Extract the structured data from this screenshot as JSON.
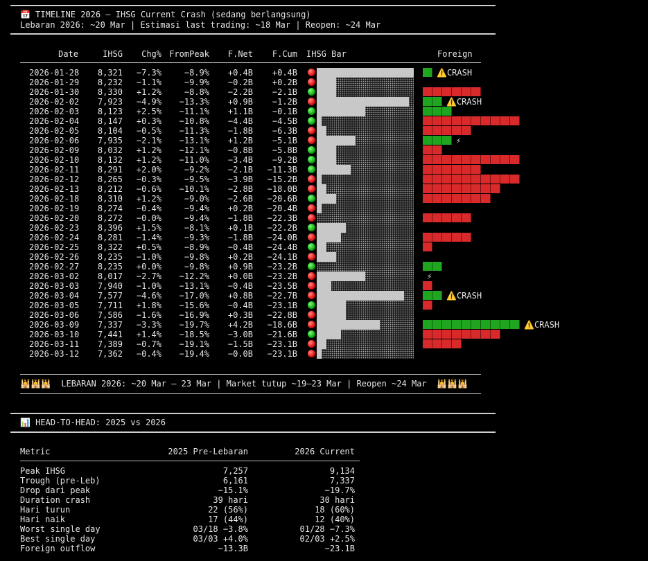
{
  "header": {
    "icon": "calendar-icon",
    "title": "📅 TIMELINE 2026 — IHSG Current Crash (sedang berlangsung)",
    "subtitle": "Lebaran 2026: ~20 Mar | Estimasi last trading: ~18 Mar | Reopen: ~24 Mar"
  },
  "table": {
    "columns": [
      "Date",
      "IHSG",
      "Chg%",
      "FromPeak",
      "F.Net",
      "F.Cum",
      "IHSG Bar",
      "Foreign"
    ],
    "rows": [
      {
        "date": "2026-01-28",
        "ihsg": "8,321",
        "chg": "−7.3%",
        "frompeak": "−8.9%",
        "fnet": "+0.4B",
        "fcum": "+0.4B",
        "dir": "dn",
        "bar": 1.0,
        "fdir": "pos",
        "fblocks": 1,
        "flag": "⚠️CRASH"
      },
      {
        "date": "2026-01-29",
        "ihsg": "8,232",
        "chg": "−1.1%",
        "frompeak": "−9.9%",
        "fnet": "−0.2B",
        "fcum": "+0.2B",
        "dir": "dn",
        "bar": 0.2,
        "fdir": "neg",
        "fblocks": 0,
        "flag": ""
      },
      {
        "date": "2026-01-30",
        "ihsg": "8,330",
        "chg": "+1.2%",
        "frompeak": "−8.8%",
        "fnet": "−2.2B",
        "fcum": "−2.1B",
        "dir": "up",
        "bar": 0.2,
        "fdir": "neg",
        "fblocks": 6,
        "flag": ""
      },
      {
        "date": "2026-02-02",
        "ihsg": "7,923",
        "chg": "−4.9%",
        "frompeak": "−13.3%",
        "fnet": "+0.9B",
        "fcum": "−1.2B",
        "dir": "dn",
        "bar": 0.95,
        "fdir": "pos",
        "fblocks": 2,
        "flag": "⚠️CRASH"
      },
      {
        "date": "2026-02-03",
        "ihsg": "8,123",
        "chg": "+2.5%",
        "frompeak": "−11.1%",
        "fnet": "+1.1B",
        "fcum": "−0.1B",
        "dir": "up",
        "bar": 0.5,
        "fdir": "pos",
        "fblocks": 3,
        "flag": ""
      },
      {
        "date": "2026-02-04",
        "ihsg": "8,147",
        "chg": "+0.3%",
        "frompeak": "−10.8%",
        "fnet": "−4.4B",
        "fcum": "−4.5B",
        "dir": "up",
        "bar": 0.05,
        "fdir": "neg",
        "fblocks": 10,
        "flag": ""
      },
      {
        "date": "2026-02-05",
        "ihsg": "8,104",
        "chg": "−0.5%",
        "frompeak": "−11.3%",
        "fnet": "−1.8B",
        "fcum": "−6.3B",
        "dir": "dn",
        "bar": 0.1,
        "fdir": "neg",
        "fblocks": 5,
        "flag": ""
      },
      {
        "date": "2026-02-06",
        "ihsg": "7,935",
        "chg": "−2.1%",
        "frompeak": "−13.1%",
        "fnet": "+1.2B",
        "fcum": "−5.1B",
        "dir": "dn",
        "bar": 0.4,
        "fdir": "pos",
        "fblocks": 3,
        "flag": "⚡"
      },
      {
        "date": "2026-02-09",
        "ihsg": "8,032",
        "chg": "+1.2%",
        "frompeak": "−12.1%",
        "fnet": "−0.8B",
        "fcum": "−5.8B",
        "dir": "up",
        "bar": 0.2,
        "fdir": "neg",
        "fblocks": 2,
        "flag": ""
      },
      {
        "date": "2026-02-10",
        "ihsg": "8,132",
        "chg": "+1.2%",
        "frompeak": "−11.0%",
        "fnet": "−3.4B",
        "fcum": "−9.2B",
        "dir": "up",
        "bar": 0.2,
        "fdir": "neg",
        "fblocks": 10,
        "flag": ""
      },
      {
        "date": "2026-02-11",
        "ihsg": "8,291",
        "chg": "+2.0%",
        "frompeak": "−9.2%",
        "fnet": "−2.1B",
        "fcum": "−11.3B",
        "dir": "up",
        "bar": 0.35,
        "fdir": "neg",
        "fblocks": 6,
        "flag": ""
      },
      {
        "date": "2026-02-12",
        "ihsg": "8,265",
        "chg": "−0.3%",
        "frompeak": "−9.5%",
        "fnet": "−3.9B",
        "fcum": "−15.2B",
        "dir": "dn",
        "bar": 0.05,
        "fdir": "neg",
        "fblocks": 10,
        "flag": ""
      },
      {
        "date": "2026-02-13",
        "ihsg": "8,212",
        "chg": "−0.6%",
        "frompeak": "−10.1%",
        "fnet": "−2.8B",
        "fcum": "−18.0B",
        "dir": "dn",
        "bar": 0.1,
        "fdir": "neg",
        "fblocks": 8,
        "flag": ""
      },
      {
        "date": "2026-02-18",
        "ihsg": "8,310",
        "chg": "+1.2%",
        "frompeak": "−9.0%",
        "fnet": "−2.6B",
        "fcum": "−20.6B",
        "dir": "up",
        "bar": 0.2,
        "fdir": "neg",
        "fblocks": 7,
        "flag": ""
      },
      {
        "date": "2026-02-19",
        "ihsg": "8,274",
        "chg": "−0.4%",
        "frompeak": "−9.4%",
        "fnet": "+0.2B",
        "fcum": "−20.4B",
        "dir": "dn",
        "bar": 0.05,
        "fdir": "pos",
        "fblocks": 0,
        "flag": ""
      },
      {
        "date": "2026-02-20",
        "ihsg": "8,272",
        "chg": "−0.0%",
        "frompeak": "−9.4%",
        "fnet": "−1.8B",
        "fcum": "−22.3B",
        "dir": "dn",
        "bar": 0.0,
        "fdir": "neg",
        "fblocks": 5,
        "flag": ""
      },
      {
        "date": "2026-02-23",
        "ihsg": "8,396",
        "chg": "+1.5%",
        "frompeak": "−8.1%",
        "fnet": "+0.1B",
        "fcum": "−22.2B",
        "dir": "up",
        "bar": 0.3,
        "fdir": "pos",
        "fblocks": 0,
        "flag": ""
      },
      {
        "date": "2026-02-24",
        "ihsg": "8,281",
        "chg": "−1.4%",
        "frompeak": "−9.3%",
        "fnet": "−1.8B",
        "fcum": "−24.0B",
        "dir": "dn",
        "bar": 0.25,
        "fdir": "neg",
        "fblocks": 5,
        "flag": ""
      },
      {
        "date": "2026-02-25",
        "ihsg": "8,322",
        "chg": "+0.5%",
        "frompeak": "−8.9%",
        "fnet": "−0.4B",
        "fcum": "−24.4B",
        "dir": "up",
        "bar": 0.1,
        "fdir": "neg",
        "fblocks": 1,
        "flag": ""
      },
      {
        "date": "2026-02-26",
        "ihsg": "8,235",
        "chg": "−1.0%",
        "frompeak": "−9.8%",
        "fnet": "+0.2B",
        "fcum": "−24.1B",
        "dir": "dn",
        "bar": 0.2,
        "fdir": "pos",
        "fblocks": 0,
        "flag": ""
      },
      {
        "date": "2026-02-27",
        "ihsg": "8,235",
        "chg": "+0.0%",
        "frompeak": "−9.8%",
        "fnet": "+0.9B",
        "fcum": "−23.2B",
        "dir": "up",
        "bar": 0.0,
        "fdir": "pos",
        "fblocks": 2,
        "flag": ""
      },
      {
        "date": "2026-03-02",
        "ihsg": "8,017",
        "chg": "−2.7%",
        "frompeak": "−12.2%",
        "fnet": "+0.0B",
        "fcum": "−23.2B",
        "dir": "dn",
        "bar": 0.5,
        "fdir": "pos",
        "fblocks": 0,
        "flag": "⚡"
      },
      {
        "date": "2026-03-03",
        "ihsg": "7,940",
        "chg": "−1.0%",
        "frompeak": "−13.1%",
        "fnet": "−0.4B",
        "fcum": "−23.5B",
        "dir": "dn",
        "bar": 0.15,
        "fdir": "neg",
        "fblocks": 1,
        "flag": ""
      },
      {
        "date": "2026-03-04",
        "ihsg": "7,577",
        "chg": "−4.6%",
        "frompeak": "−17.0%",
        "fnet": "+0.8B",
        "fcum": "−22.7B",
        "dir": "dn",
        "bar": 0.9,
        "fdir": "pos",
        "fblocks": 2,
        "flag": "⚠️CRASH"
      },
      {
        "date": "2026-03-05",
        "ihsg": "7,711",
        "chg": "+1.8%",
        "frompeak": "−15.6%",
        "fnet": "−0.4B",
        "fcum": "−23.1B",
        "dir": "up",
        "bar": 0.3,
        "fdir": "neg",
        "fblocks": 1,
        "flag": ""
      },
      {
        "date": "2026-03-06",
        "ihsg": "7,586",
        "chg": "−1.6%",
        "frompeak": "−16.9%",
        "fnet": "+0.3B",
        "fcum": "−22.8B",
        "dir": "dn",
        "bar": 0.3,
        "fdir": "pos",
        "fblocks": 0,
        "flag": ""
      },
      {
        "date": "2026-03-09",
        "ihsg": "7,337",
        "chg": "−3.3%",
        "frompeak": "−19.7%",
        "fnet": "+4.2B",
        "fcum": "−18.6B",
        "dir": "dn",
        "bar": 0.65,
        "fdir": "pos",
        "fblocks": 10,
        "flag": "⚠️CRASH"
      },
      {
        "date": "2026-03-10",
        "ihsg": "7,441",
        "chg": "+1.4%",
        "frompeak": "−18.5%",
        "fnet": "−3.0B",
        "fcum": "−21.6B",
        "dir": "up",
        "bar": 0.25,
        "fdir": "neg",
        "fblocks": 8,
        "flag": ""
      },
      {
        "date": "2026-03-11",
        "ihsg": "7,389",
        "chg": "−0.7%",
        "frompeak": "−19.1%",
        "fnet": "−1.5B",
        "fcum": "−23.1B",
        "dir": "dn",
        "bar": 0.1,
        "fdir": "neg",
        "fblocks": 4,
        "flag": ""
      },
      {
        "date": "2026-03-12",
        "ihsg": "7,362",
        "chg": "−0.4%",
        "frompeak": "−19.4%",
        "fnet": "−0.0B",
        "fcum": "−23.1B",
        "dir": "dn",
        "bar": 0.05,
        "fdir": "neg",
        "fblocks": 0,
        "flag": ""
      }
    ]
  },
  "lebaran_banner": "🕌🕌🕌  LEBARAN 2026: ~20 Mar – 23 Mar | Market tutup ~19–23 Mar | Reopen ~24 Mar  🕌🕌🕌",
  "h2h": {
    "icon": "chart-icon",
    "title": "📊 HEAD-TO-HEAD: 2025 vs 2026",
    "columns": [
      "Metric",
      "2025 Pre-Lebaran",
      "2026 Current"
    ],
    "rows": [
      {
        "metric": "Peak IHSG",
        "y2025": "7,257",
        "y2026": "9,134"
      },
      {
        "metric": "Trough (pre-Leb)",
        "y2025": "6,161",
        "y2026": "7,337"
      },
      {
        "metric": "Drop dari peak",
        "y2025": "−15.1%",
        "y2026": "−19.7%"
      },
      {
        "metric": "Duration crash",
        "y2025": "39 hari",
        "y2026": "30 hari"
      },
      {
        "metric": "Hari turun",
        "y2025": "22 (56%)",
        "y2026": "18 (60%)"
      },
      {
        "metric": "Hari naik",
        "y2025": "17 (44%)",
        "y2026": "12 (40%)"
      },
      {
        "metric": "Worst single day",
        "y2025": "03/18 −3.8%",
        "y2026": "01/28 −7.3%"
      },
      {
        "metric": "Best single day",
        "y2025": "03/03 +4.0%",
        "y2026": "02/03 +2.5%"
      },
      {
        "metric": "Foreign outflow",
        "y2025": "−13.3B",
        "y2026": "−23.1B"
      }
    ]
  },
  "colors": {
    "up": "#10a810",
    "down": "#e01010",
    "bar": "#c8c8c8",
    "warn": "#f2c200"
  }
}
